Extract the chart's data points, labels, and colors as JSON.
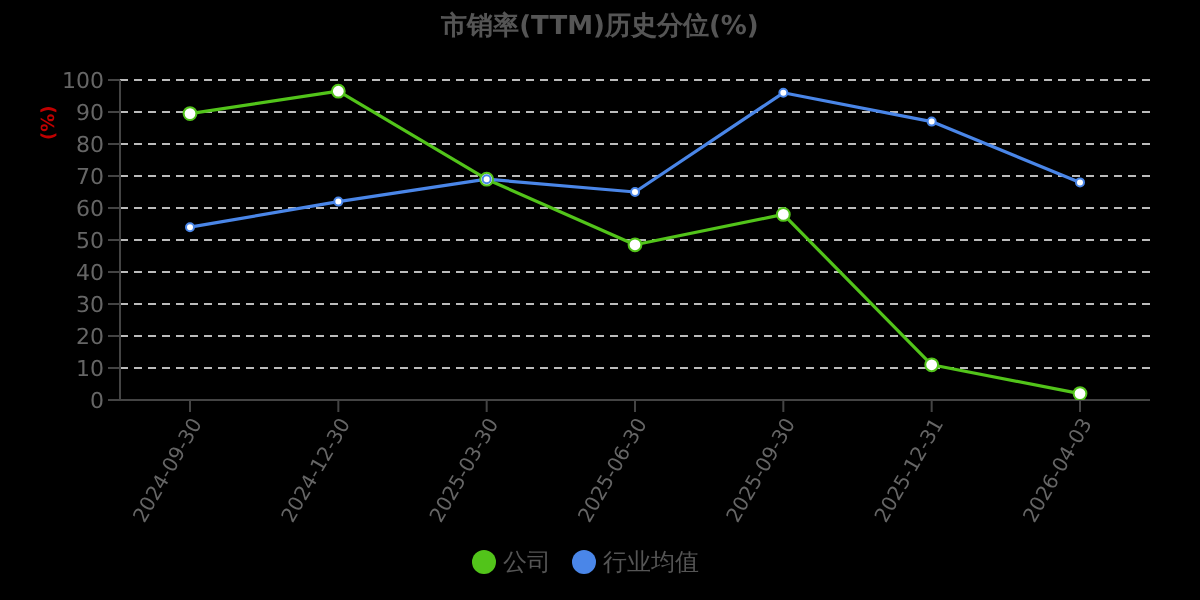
{
  "chart_data": {
    "type": "line",
    "title": "市销率(TTM)历史分位(%)",
    "ylabel": "(%)",
    "categories": [
      "2024-09-30",
      "2024-12-30",
      "2025-03-30",
      "2025-06-30",
      "2025-09-30",
      "2025-12-31",
      "2026-04-03"
    ],
    "series": [
      {
        "name": "公司",
        "color": "#52c41a",
        "values": [
          89.5,
          96.5,
          69,
          48.5,
          58,
          11,
          2
        ]
      },
      {
        "name": "行业均值",
        "color": "#4a86e8",
        "values": [
          54,
          62,
          69,
          65,
          96,
          87,
          68
        ]
      }
    ],
    "ylim": [
      0,
      100
    ],
    "yticks": [
      0,
      10,
      20,
      30,
      40,
      50,
      60,
      70,
      80,
      90,
      100
    ],
    "grid": "y",
    "legend": "bottom",
    "marker": "circle",
    "line_style": "solid"
  }
}
